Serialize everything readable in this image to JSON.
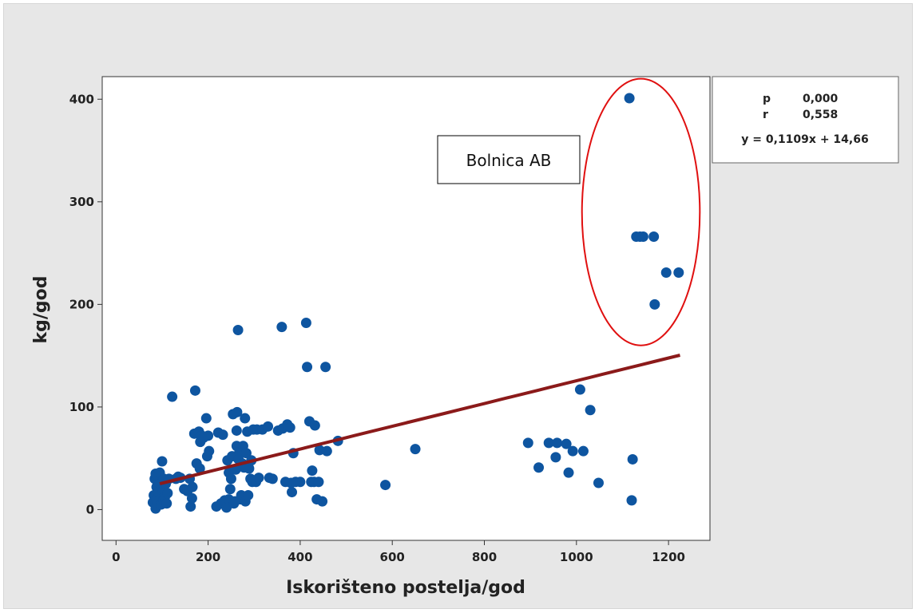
{
  "chart_data": {
    "type": "scatter",
    "xlabel": "Iskorišteno postelja/god",
    "ylabel": "kg/god",
    "xlim": [
      -30,
      1290
    ],
    "ylim": [
      -30,
      422
    ],
    "xticks": [
      0,
      200,
      400,
      600,
      800,
      1000,
      1200
    ],
    "yticks": [
      0,
      100,
      200,
      300,
      400
    ],
    "grid": false,
    "marker_color": "#0e55a0",
    "fit_color": "#8b1a1a",
    "ellipse_color": "#e01010",
    "annotation": "Bolnica AB",
    "stats": {
      "p_label": "p",
      "p_value": "0,000",
      "r_label": "r",
      "r_value": "0,558",
      "equation": "y = 0,1109x + 14,66"
    },
    "fit_line": {
      "slope": 0.1109,
      "intercept": 14.66,
      "x_range": [
        95,
        1225
      ]
    },
    "highlight_ellipse": {
      "cx": 1140,
      "cy": 290,
      "rx": 128,
      "ry": 130
    },
    "points": [
      [
        80,
        7
      ],
      [
        82,
        14
      ],
      [
        84,
        30
      ],
      [
        86,
        1
      ],
      [
        86,
        35
      ],
      [
        88,
        10
      ],
      [
        88,
        22
      ],
      [
        92,
        17
      ],
      [
        95,
        25
      ],
      [
        95,
        36
      ],
      [
        98,
        5
      ],
      [
        100,
        47
      ],
      [
        102,
        18
      ],
      [
        103,
        9
      ],
      [
        104,
        30
      ],
      [
        106,
        12
      ],
      [
        108,
        25
      ],
      [
        110,
        6
      ],
      [
        112,
        16
      ],
      [
        115,
        30
      ],
      [
        122,
        110
      ],
      [
        130,
        30
      ],
      [
        135,
        32
      ],
      [
        140,
        31
      ],
      [
        148,
        20
      ],
      [
        155,
        18
      ],
      [
        160,
        30
      ],
      [
        162,
        3
      ],
      [
        165,
        11
      ],
      [
        166,
        22
      ],
      [
        170,
        74
      ],
      [
        172,
        116
      ],
      [
        175,
        45
      ],
      [
        180,
        76
      ],
      [
        182,
        40
      ],
      [
        183,
        66
      ],
      [
        186,
        72
      ],
      [
        190,
        70
      ],
      [
        196,
        89
      ],
      [
        198,
        52
      ],
      [
        200,
        72
      ],
      [
        202,
        57
      ],
      [
        218,
        3
      ],
      [
        222,
        75
      ],
      [
        228,
        6
      ],
      [
        232,
        73
      ],
      [
        236,
        9
      ],
      [
        240,
        2
      ],
      [
        242,
        48
      ],
      [
        245,
        10
      ],
      [
        245,
        36
      ],
      [
        248,
        20
      ],
      [
        250,
        30
      ],
      [
        252,
        52
      ],
      [
        254,
        93
      ],
      [
        256,
        6
      ],
      [
        258,
        8
      ],
      [
        260,
        39
      ],
      [
        262,
        62
      ],
      [
        262,
        77
      ],
      [
        263,
        95
      ],
      [
        265,
        175
      ],
      [
        266,
        49
      ],
      [
        268,
        56
      ],
      [
        270,
        10
      ],
      [
        272,
        14
      ],
      [
        274,
        45
      ],
      [
        276,
        62
      ],
      [
        278,
        41
      ],
      [
        280,
        89
      ],
      [
        281,
        8
      ],
      [
        283,
        55
      ],
      [
        285,
        76
      ],
      [
        287,
        14
      ],
      [
        289,
        40
      ],
      [
        292,
        30
      ],
      [
        294,
        48
      ],
      [
        296,
        27
      ],
      [
        298,
        78
      ],
      [
        304,
        27
      ],
      [
        306,
        78
      ],
      [
        310,
        31
      ],
      [
        318,
        78
      ],
      [
        330,
        81
      ],
      [
        333,
        31
      ],
      [
        340,
        30
      ],
      [
        352,
        77
      ],
      [
        360,
        178
      ],
      [
        362,
        79
      ],
      [
        368,
        27
      ],
      [
        372,
        83
      ],
      [
        378,
        80
      ],
      [
        380,
        26
      ],
      [
        382,
        17
      ],
      [
        385,
        55
      ],
      [
        390,
        27
      ],
      [
        400,
        27
      ],
      [
        413,
        182
      ],
      [
        415,
        139
      ],
      [
        420,
        86
      ],
      [
        424,
        27
      ],
      [
        426,
        38
      ],
      [
        430,
        27
      ],
      [
        432,
        82
      ],
      [
        436,
        10
      ],
      [
        440,
        27
      ],
      [
        442,
        58
      ],
      [
        448,
        8
      ],
      [
        455,
        139
      ],
      [
        458,
        57
      ],
      [
        482,
        67
      ],
      [
        585,
        24
      ],
      [
        650,
        59
      ],
      [
        895,
        65
      ],
      [
        918,
        41
      ],
      [
        940,
        65
      ],
      [
        955,
        51
      ],
      [
        958,
        65
      ],
      [
        978,
        64
      ],
      [
        983,
        36
      ],
      [
        992,
        57
      ],
      [
        1008,
        117
      ],
      [
        1015,
        57
      ],
      [
        1030,
        97
      ],
      [
        1048,
        26
      ],
      [
        1115,
        401
      ],
      [
        1120,
        9
      ],
      [
        1122,
        49
      ],
      [
        1130,
        266
      ],
      [
        1138,
        266
      ],
      [
        1145,
        266
      ],
      [
        1168,
        266
      ],
      [
        1170,
        200
      ],
      [
        1195,
        231
      ],
      [
        1222,
        231
      ]
    ]
  }
}
